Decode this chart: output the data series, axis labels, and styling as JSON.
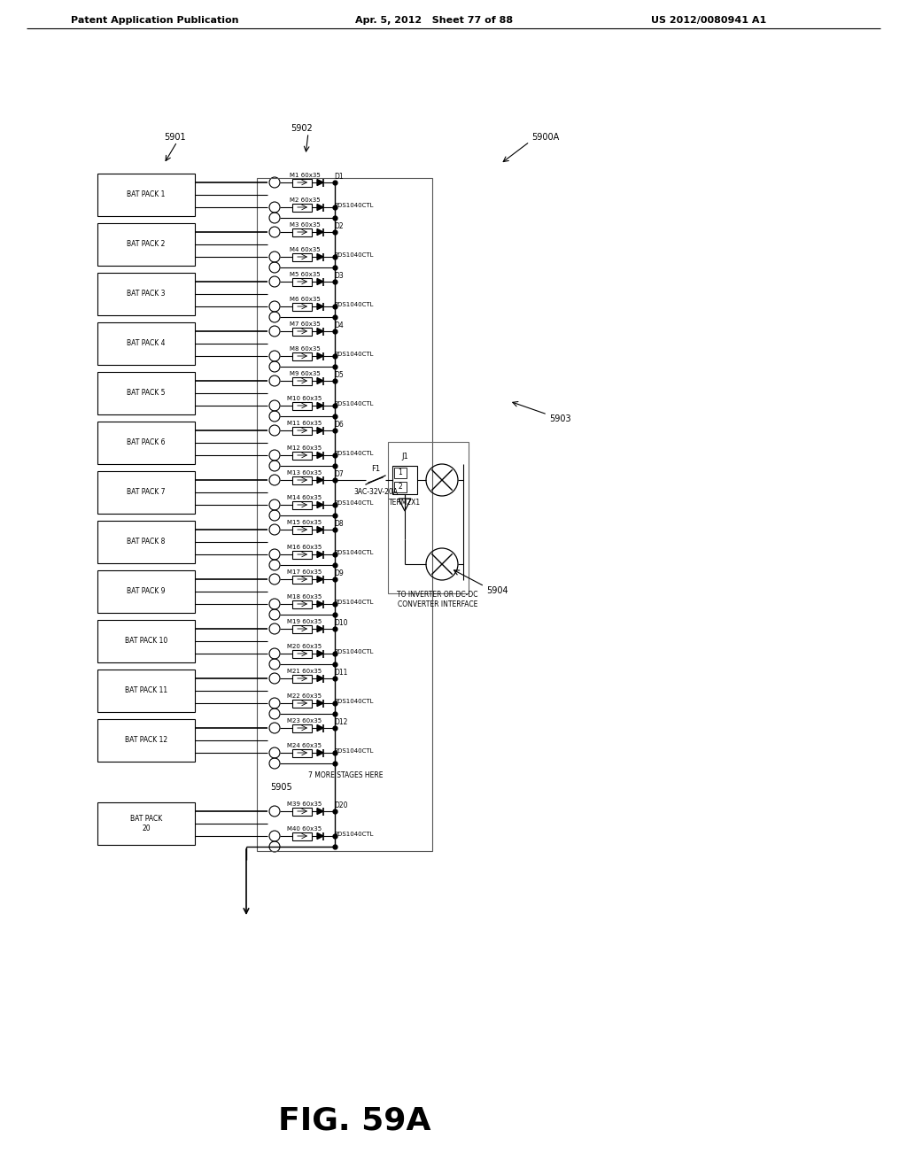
{
  "title": "FIG. 59A",
  "header_left": "Patent Application Publication",
  "header_center": "Apr. 5, 2012   Sheet 77 of 88",
  "header_right": "US 2012/0080941 A1",
  "label_5900A": "5900A",
  "label_5901": "5901",
  "label_5902": "5902",
  "label_5903": "5903",
  "label_5904": "5904",
  "label_5905": "5905",
  "bat_packs": [
    "BAT PACK 1",
    "BAT PACK 2",
    "BAT PACK 3",
    "BAT PACK 4",
    "BAT PACK 5",
    "BAT PACK 6",
    "BAT PACK 7",
    "BAT PACK 8",
    "BAT PACK 9",
    "BAT PACK 10",
    "BAT PACK 11",
    "BAT PACK 12",
    "BAT PACK\n20"
  ],
  "mosfet_pairs": [
    [
      "M1 60x35",
      "M2 60x35",
      "D1",
      "PDS1040CTL"
    ],
    [
      "M3 60x35",
      "M4 60x35",
      "D2",
      "PDS1040CTL"
    ],
    [
      "M5 60x35",
      "M6 60x35",
      "D3",
      "PDS1040CTL"
    ],
    [
      "M7 60x35",
      "M8 60x35",
      "D4",
      "PDS1040CTL"
    ],
    [
      "M9 60x35",
      "M10 60x35",
      "D5",
      "PDS1040CTL"
    ],
    [
      "M11 60x35",
      "M12 60x35",
      "D6",
      "PDS1040CTL"
    ],
    [
      "M13 60x35",
      "M14 60x35",
      "D7",
      "PDS1040CTL"
    ],
    [
      "M15 60x35",
      "M16 60x35",
      "D8",
      "PDS1040CTL"
    ],
    [
      "M17 60x35",
      "M18 60x35",
      "D9",
      "PDS1040CTL"
    ],
    [
      "M19 60x35",
      "M20 60x35",
      "D10",
      "PDS1040CTL"
    ],
    [
      "M21 60x35",
      "M22 60x35",
      "D11",
      "PDS1040CTL"
    ],
    [
      "M23 60x35",
      "M24 60x35",
      "D12",
      "PDS1040CTL"
    ],
    [
      "M39 60x35",
      "M40 60x35",
      "D20",
      "PDS1040CTL"
    ]
  ],
  "more_stages_text": "7 MORE STAGES HERE",
  "fuse_label": "F1",
  "fuse_spec": "3AC-32V-20A",
  "connector_label": "J1",
  "connector_spec": "TERM2X1",
  "output_label": "TO INVERTER OR DC-DC\nCONVERTER INTERFACE",
  "bg_color": "#ffffff",
  "line_color": "#000000",
  "text_color": "#000000"
}
